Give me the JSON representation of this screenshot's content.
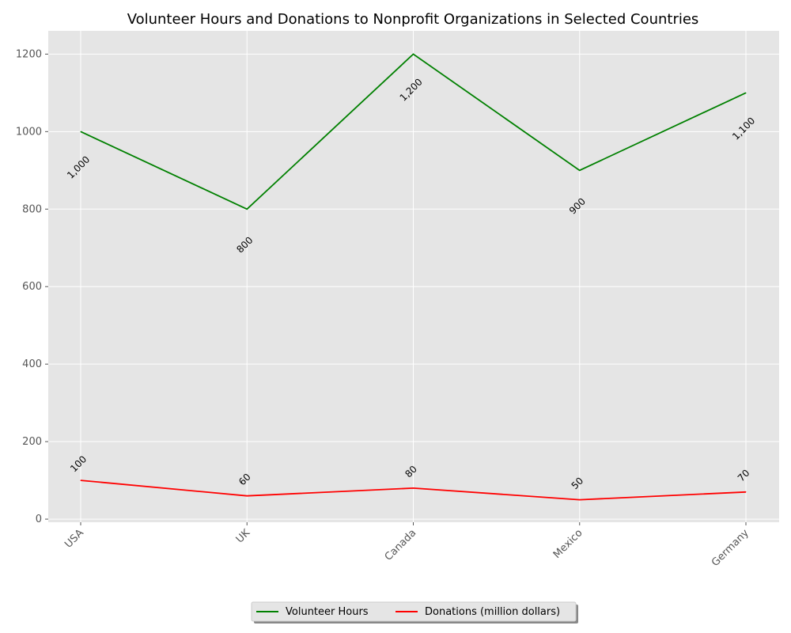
{
  "chart_data": {
    "type": "line",
    "title": "Volunteer Hours and Donations to Nonprofit Organizations in Selected Countries",
    "xlabel": "",
    "ylabel": "",
    "categories": [
      "USA",
      "UK",
      "Canada",
      "Mexico",
      "Germany"
    ],
    "series": [
      {
        "name": "Volunteer Hours",
        "values": [
          1000,
          800,
          1200,
          900,
          1100
        ],
        "labels": [
          "1,000",
          "800",
          "1,200",
          "900",
          "1,100"
        ],
        "color": "#008000"
      },
      {
        "name": "Donations (million dollars)",
        "values": [
          100,
          60,
          80,
          50,
          70
        ],
        "labels": [
          "100",
          "60",
          "80",
          "50",
          "70"
        ],
        "color": "#ff0000"
      }
    ],
    "ylim": [
      -8,
      1260
    ],
    "yticks": [
      0,
      200,
      400,
      600,
      800,
      1000,
      1200
    ],
    "grid": true,
    "legend_position": "bottom-center",
    "background_color": "#e5e5e5",
    "grid_color": "#ffffff"
  }
}
